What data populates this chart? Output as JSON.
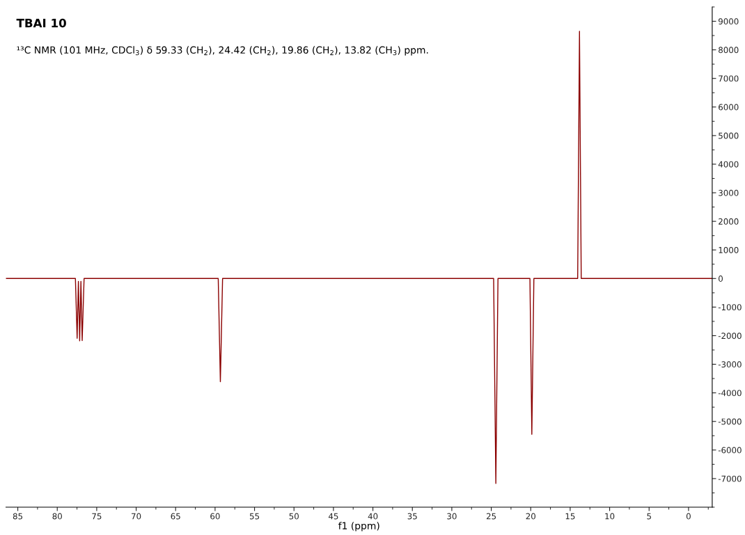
{
  "chart_data": {
    "type": "line",
    "title": "TBAI 10",
    "subtitle": "¹³C NMR (101 MHz, CDCl$_{3}$) δ 59.33 (CH$_{2}$), 24.42 (CH$_{2}$), 19.86 (CH$_{2}$), 13.82 (CH$_{3}$) ppm.",
    "xlabel": "f1 (ppm)",
    "series": [
      {
        "color": "#8b0000",
        "x": [
          86.5,
          80,
          77.7,
          77.48,
          77.32,
          77.16,
          77.0,
          76.84,
          76.6,
          70,
          59.6,
          59.33,
          59.05,
          50,
          40,
          30,
          24.7,
          24.42,
          24.15,
          20.1,
          19.86,
          19.6,
          14.05,
          13.82,
          13.6,
          8,
          0,
          -3.0
        ],
        "values": [
          0,
          0,
          0,
          -2090,
          -100,
          -2180,
          -100,
          -2170,
          0,
          0,
          0,
          -3610,
          0,
          0,
          0,
          0,
          0,
          -7170,
          0,
          0,
          -5450,
          0,
          0,
          8650,
          0,
          0,
          0,
          0
        ]
      }
    ],
    "xlim": [
      86.5,
      -3.0
    ],
    "ylim": [
      -8000,
      9500
    ],
    "xticks": [
      85,
      80,
      75,
      70,
      65,
      60,
      55,
      50,
      45,
      40,
      35,
      30,
      25,
      20,
      15,
      10,
      5,
      0
    ],
    "yticks": [
      -7000,
      -6000,
      -5000,
      -4000,
      -3000,
      -2000,
      -1000,
      0,
      1000,
      2000,
      3000,
      4000,
      5000,
      6000,
      7000,
      8000,
      9000
    ],
    "grid": false,
    "legend": false,
    "marker": "none",
    "line_style": "solid"
  }
}
